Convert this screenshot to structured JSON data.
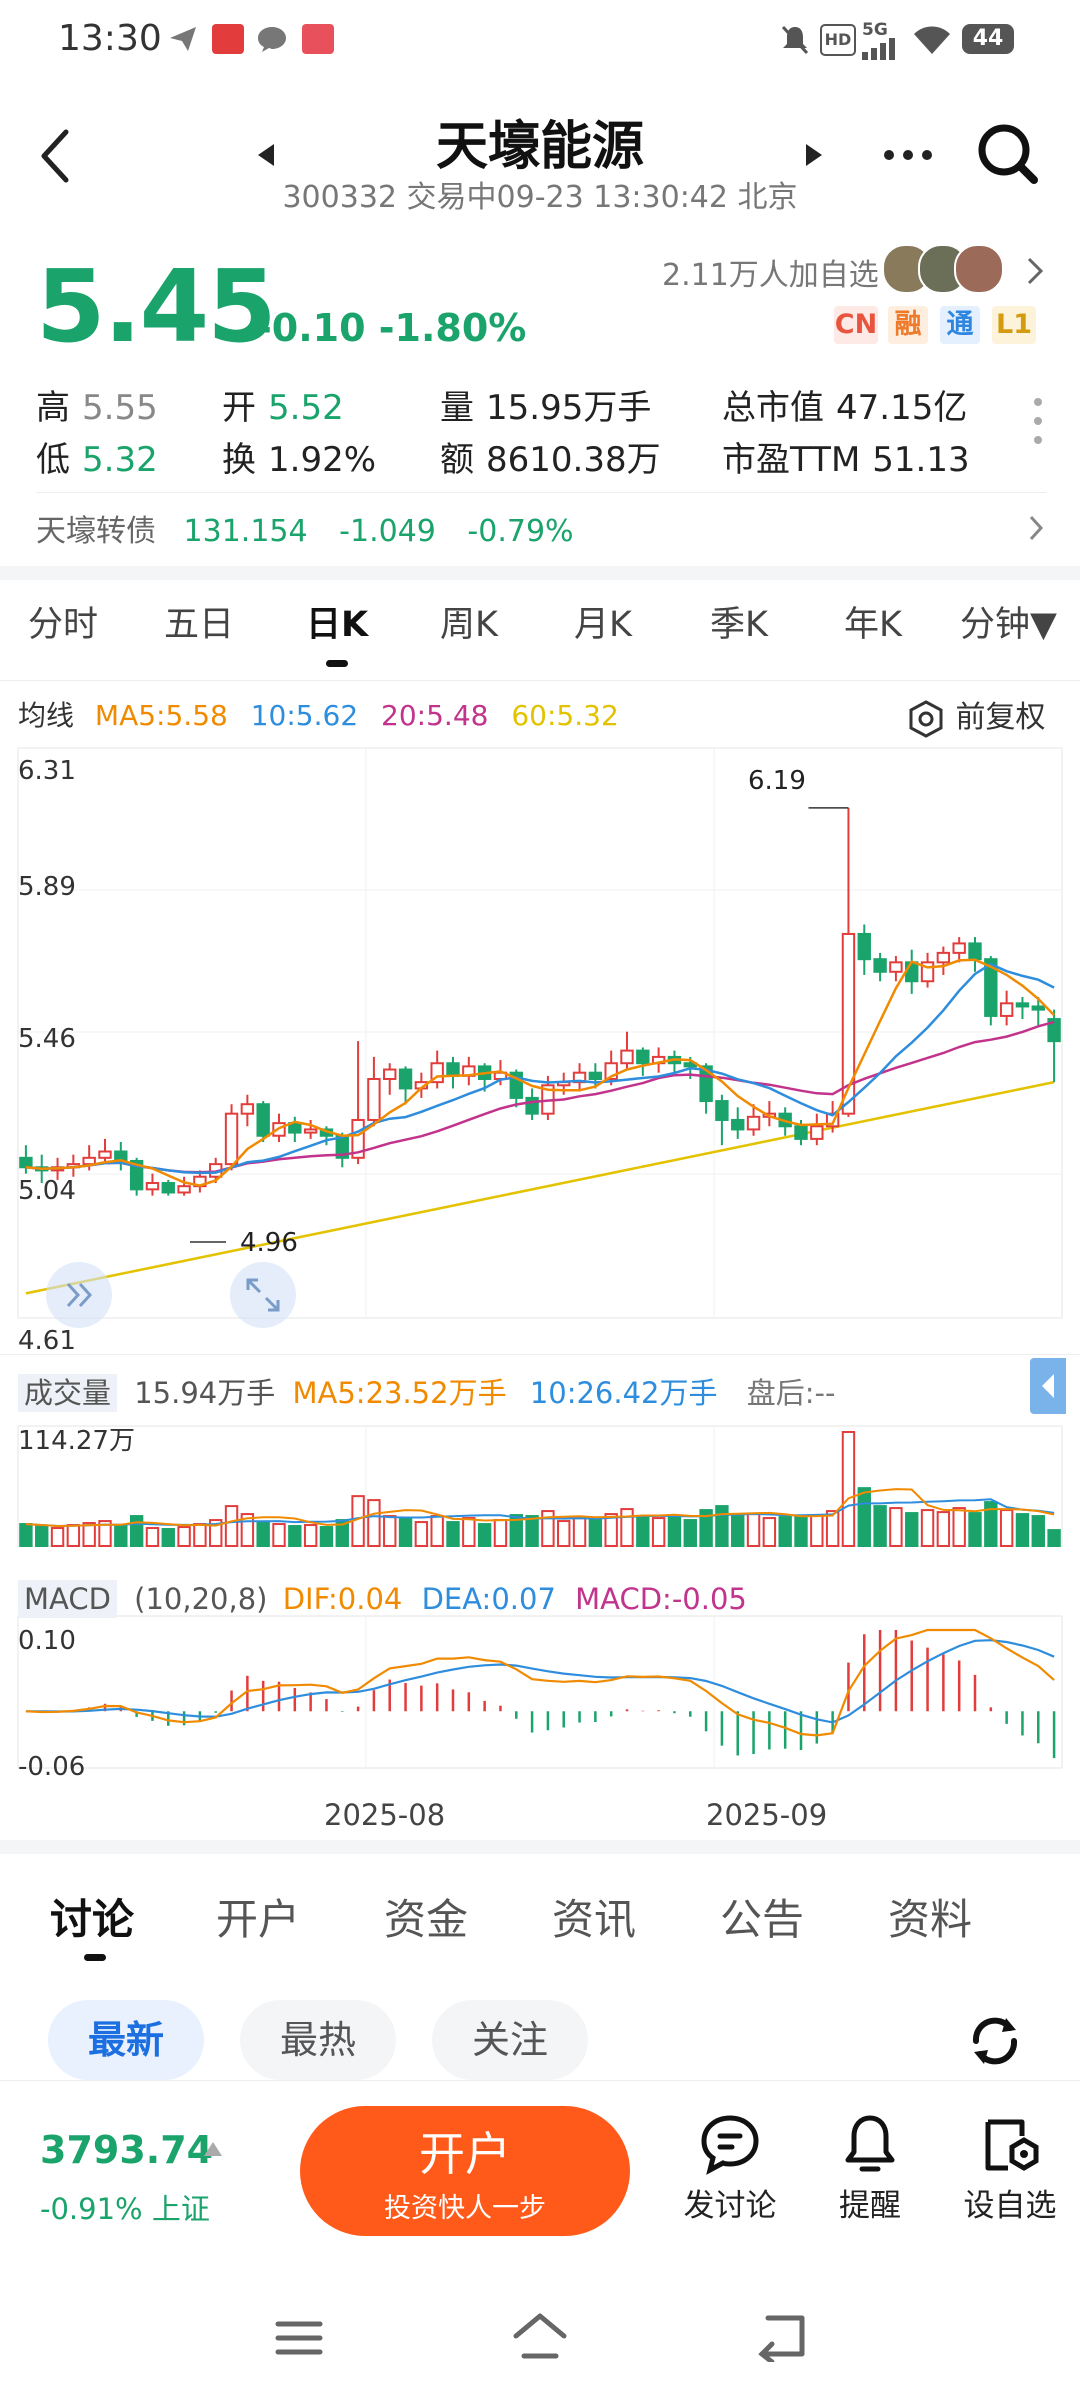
{
  "status_bar": {
    "time": "13:30",
    "battery": "44",
    "network": "5G"
  },
  "header": {
    "title": "天壕能源",
    "subtitle": "300332 交易中09-23 13:30:42 北京"
  },
  "quote": {
    "price": "5.45",
    "change": "-0.10",
    "change_pct": "-1.80%",
    "watchers": "2.11万人加自选",
    "badges": [
      "CN",
      "融",
      "通",
      "L1"
    ],
    "high_label": "高",
    "high": "5.55",
    "low_label": "低",
    "low": "5.32",
    "open_label": "开",
    "open": "5.52",
    "turnover_label": "换",
    "turnover": "1.92%",
    "volume_label": "量",
    "volume": "15.95万手",
    "amount_label": "额",
    "amount": "8610.38万",
    "mcap_label": "总市值",
    "mcap": "47.15亿",
    "pe_label": "市盈TTM",
    "pe": "51.13"
  },
  "bond": {
    "name": "天壕转债",
    "price": "131.154",
    "change": "-1.049",
    "pct": "-0.79%"
  },
  "period_tabs": [
    "分时",
    "五日",
    "日K",
    "周K",
    "月K",
    "季K",
    "年K",
    "分钟▼"
  ],
  "ma": {
    "label": "均线",
    "ma5": "MA5:5.58",
    "ma10": "10:5.62",
    "ma20": "20:5.48",
    "ma60": "60:5.32",
    "adjust": "前复权"
  },
  "chart": {
    "y_ticks": [
      "6.31",
      "5.89",
      "5.46",
      "5.04",
      "4.61"
    ],
    "high_mark": "6.19",
    "low_mark": "4.96",
    "vol_label": "成交量",
    "vol_value": "15.94万手",
    "vol_ma5": "MA5:23.52万手",
    "vol_ma10": "10:26.42万手",
    "after_hours": "盘后:--",
    "vol_max": "114.27万",
    "macd_label": "MACD",
    "macd_params": "(10,20,8)",
    "dif": "DIF:0.04",
    "dea": "DEA:0.07",
    "macd_val": "MACD:-0.05",
    "macd_top": "0.10",
    "macd_bottom": "-0.06",
    "x_ticks": [
      "2025-08",
      "2025-09"
    ]
  },
  "chart_data": {
    "type": "candlestick",
    "ylim": [
      4.61,
      6.31
    ],
    "candles": [
      [
        5.08,
        5.05,
        5.12,
        5.03
      ],
      [
        5.05,
        5.04,
        5.09,
        5.0
      ],
      [
        5.04,
        5.05,
        5.08,
        5.01
      ],
      [
        5.05,
        5.06,
        5.09,
        5.02
      ],
      [
        5.06,
        5.08,
        5.12,
        5.04
      ],
      [
        5.08,
        5.1,
        5.14,
        5.06
      ],
      [
        5.1,
        5.07,
        5.13,
        5.04
      ],
      [
        5.07,
        4.98,
        5.08,
        4.96
      ],
      [
        4.98,
        5.0,
        5.03,
        4.96
      ],
      [
        5.0,
        4.97,
        5.01,
        4.96
      ],
      [
        4.97,
        4.99,
        5.02,
        4.96
      ],
      [
        4.99,
        5.02,
        5.04,
        4.97
      ],
      [
        5.02,
        5.06,
        5.08,
        5.0
      ],
      [
        5.06,
        5.22,
        5.25,
        5.04
      ],
      [
        5.22,
        5.25,
        5.28,
        5.18
      ],
      [
        5.25,
        5.15,
        5.26,
        5.13
      ],
      [
        5.15,
        5.19,
        5.22,
        5.13
      ],
      [
        5.19,
        5.16,
        5.21,
        5.13
      ],
      [
        5.16,
        5.17,
        5.2,
        5.14
      ],
      [
        5.17,
        5.15,
        5.18,
        5.12
      ],
      [
        5.15,
        5.08,
        5.16,
        5.05
      ],
      [
        5.08,
        5.2,
        5.45,
        5.06
      ],
      [
        5.2,
        5.33,
        5.4,
        5.18
      ],
      [
        5.33,
        5.36,
        5.38,
        5.28
      ],
      [
        5.36,
        5.3,
        5.37,
        5.25
      ],
      [
        5.3,
        5.32,
        5.35,
        5.27
      ],
      [
        5.32,
        5.38,
        5.42,
        5.3
      ],
      [
        5.38,
        5.34,
        5.4,
        5.3
      ],
      [
        5.34,
        5.37,
        5.4,
        5.31
      ],
      [
        5.37,
        5.33,
        5.38,
        5.29
      ],
      [
        5.33,
        5.35,
        5.39,
        5.31
      ],
      [
        5.35,
        5.27,
        5.36,
        5.24
      ],
      [
        5.27,
        5.22,
        5.3,
        5.2
      ],
      [
        5.22,
        5.31,
        5.34,
        5.2
      ],
      [
        5.31,
        5.32,
        5.35,
        5.28
      ],
      [
        5.32,
        5.35,
        5.38,
        5.29
      ],
      [
        5.35,
        5.33,
        5.38,
        5.3
      ],
      [
        5.33,
        5.38,
        5.42,
        5.31
      ],
      [
        5.38,
        5.42,
        5.48,
        5.36
      ],
      [
        5.42,
        5.38,
        5.43,
        5.34
      ],
      [
        5.38,
        5.4,
        5.43,
        5.35
      ],
      [
        5.4,
        5.38,
        5.42,
        5.34
      ],
      [
        5.38,
        5.37,
        5.4,
        5.33
      ],
      [
        5.37,
        5.26,
        5.38,
        5.22
      ],
      [
        5.26,
        5.2,
        5.28,
        5.12
      ],
      [
        5.2,
        5.17,
        5.24,
        5.14
      ],
      [
        5.17,
        5.21,
        5.25,
        5.15
      ],
      [
        5.21,
        5.22,
        5.26,
        5.18
      ],
      [
        5.22,
        5.18,
        5.24,
        5.15
      ],
      [
        5.18,
        5.14,
        5.2,
        5.12
      ],
      [
        5.14,
        5.18,
        5.22,
        5.12
      ],
      [
        5.18,
        5.22,
        5.26,
        5.16
      ],
      [
        5.22,
        5.79,
        6.19,
        5.21
      ],
      [
        5.79,
        5.71,
        5.82,
        5.66
      ],
      [
        5.71,
        5.67,
        5.73,
        5.64
      ],
      [
        5.67,
        5.7,
        5.72,
        5.64
      ],
      [
        5.7,
        5.64,
        5.74,
        5.6
      ],
      [
        5.64,
        5.7,
        5.73,
        5.62
      ],
      [
        5.7,
        5.73,
        5.75,
        5.66
      ],
      [
        5.73,
        5.76,
        5.78,
        5.7
      ],
      [
        5.76,
        5.71,
        5.78,
        5.67
      ],
      [
        5.71,
        5.53,
        5.72,
        5.5
      ],
      [
        5.53,
        5.57,
        5.61,
        5.5
      ],
      [
        5.57,
        5.56,
        5.59,
        5.52
      ],
      [
        5.56,
        5.55,
        5.59,
        5.5
      ],
      [
        5.52,
        5.45,
        5.55,
        5.32
      ]
    ],
    "volumes": [
      22,
      20,
      18,
      21,
      23,
      25,
      20,
      30,
      18,
      17,
      19,
      22,
      26,
      40,
      32,
      24,
      22,
      20,
      21,
      19,
      26,
      50,
      46,
      30,
      28,
      24,
      30,
      24,
      28,
      22,
      26,
      31,
      30,
      35,
      25,
      28,
      26,
      32,
      37,
      30,
      28,
      30,
      26,
      36,
      40,
      30,
      32,
      28,
      29,
      30,
      31,
      35,
      114.27,
      58,
      40,
      38,
      33,
      36,
      34,
      38,
      33,
      44,
      36,
      32,
      30,
      15.94
    ],
    "macd_range": [
      -0.06,
      0.1
    ]
  }
}
